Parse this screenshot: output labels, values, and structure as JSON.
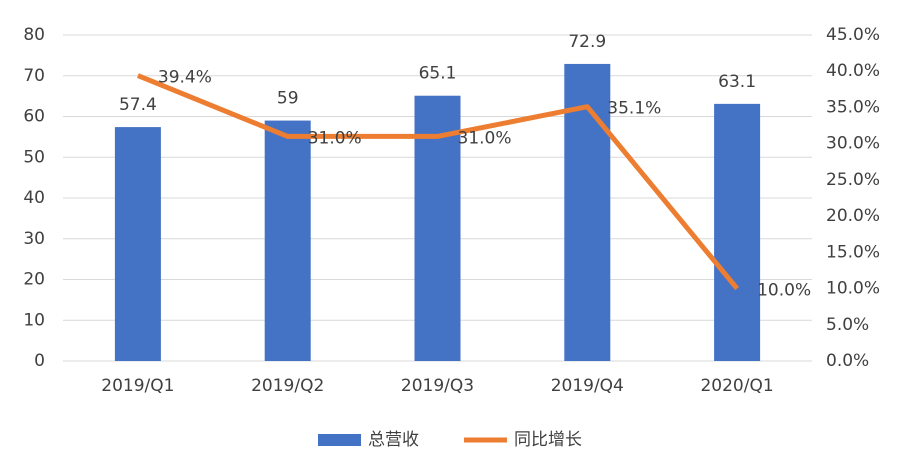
{
  "chart_data": {
    "type": "bar",
    "categories": [
      "2019/Q1",
      "2019/Q2",
      "2019/Q3",
      "2019/Q4",
      "2020/Q1"
    ],
    "series": [
      {
        "name": "总营收",
        "type": "bar",
        "color": "#4472c4",
        "values": [
          57.4,
          59,
          65.1,
          72.9,
          63.1
        ]
      },
      {
        "name": "同比增长",
        "type": "line",
        "axis": "y2",
        "color": "#ed7d31",
        "values": [
          39.4,
          31.0,
          31.0,
          35.1,
          10.0
        ],
        "value_labels": [
          "39.4%",
          "31.0%",
          "31.0%",
          "35.1%",
          "10.0%"
        ]
      }
    ],
    "ylim": [
      0,
      80
    ],
    "yticks": [
      0,
      10,
      20,
      30,
      40,
      50,
      60,
      70,
      80
    ],
    "y2lim": [
      0,
      45
    ],
    "y2ticks": [
      {
        "value": 0,
        "label": "0.0%"
      },
      {
        "value": 5,
        "label": "5.0%"
      },
      {
        "value": 10,
        "label": "10.0%"
      },
      {
        "value": 15,
        "label": "15.0%"
      },
      {
        "value": 20,
        "label": "20.0%"
      },
      {
        "value": 25,
        "label": "25.0%"
      },
      {
        "value": 30,
        "label": "30.0%"
      },
      {
        "value": 35,
        "label": "35.0%"
      },
      {
        "value": 40,
        "label": "40.0%"
      },
      {
        "value": 45,
        "label": "45.0%"
      }
    ],
    "grid": true,
    "legend": "bottom"
  }
}
